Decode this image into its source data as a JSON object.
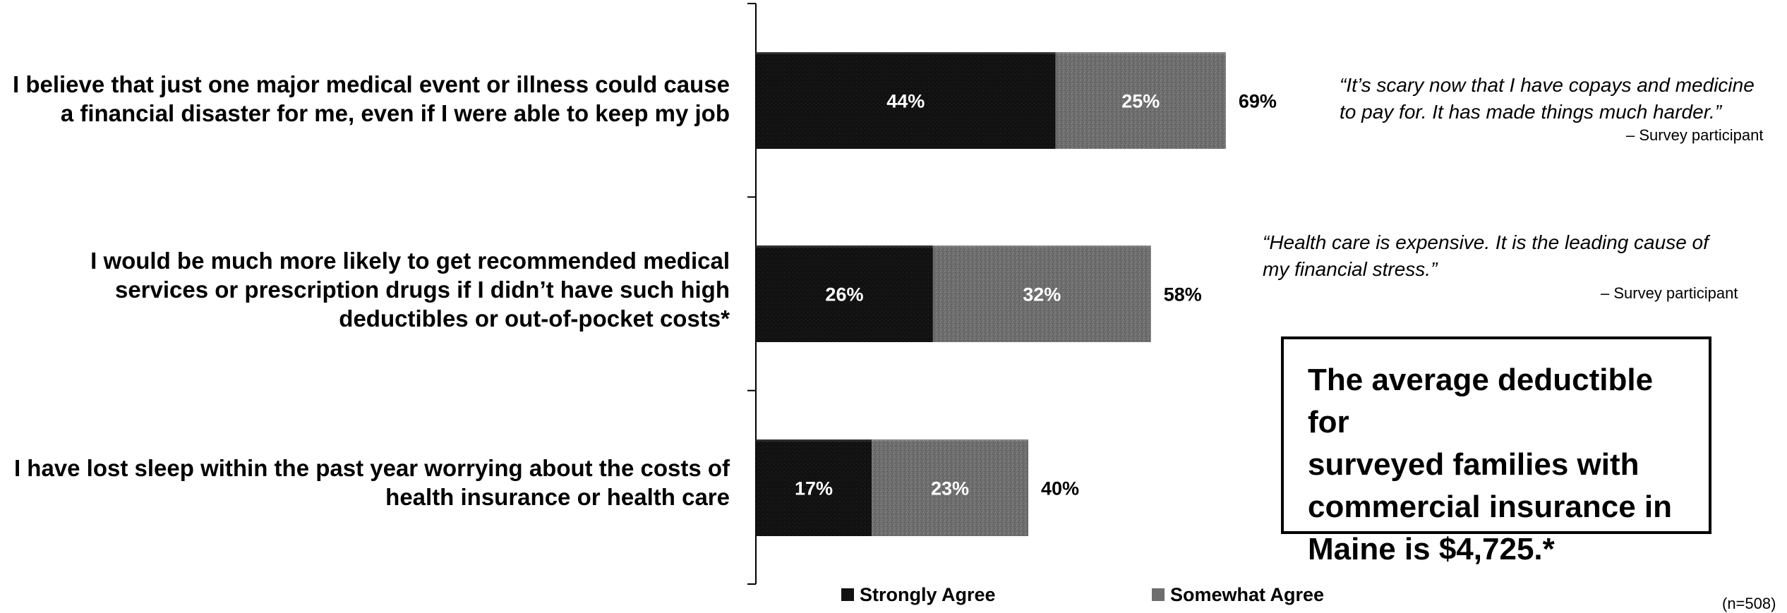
{
  "chart_data": {
    "type": "bar",
    "orientation": "horizontal",
    "stacked": true,
    "categories": [
      "I believe that just one major medical event or illness could cause a financial disaster for me, even if I were able to keep my job",
      "I would be much more likely to get recommended medical services or prescription drugs if I didn't have such high deductibles or out-of-pocket costs*",
      "I have lost sleep within the past year worrying about the costs of health insurance or health care"
    ],
    "category_lines": [
      [
        "I believe that just one major medical event or illness could cause",
        "a financial disaster for me, even if I were able to keep my job"
      ],
      [
        "I would be much more likely to get recommended medical",
        "services or prescription drugs if I didn’t have such high",
        "deductibles or out-of-pocket costs*"
      ],
      [
        "I have lost sleep within the past year worrying about the costs of",
        "health insurance or health care"
      ]
    ],
    "series": [
      {
        "name": "Strongly Agree",
        "values": [
          44,
          26,
          17
        ],
        "labels": [
          "44%",
          "26%",
          "17%"
        ],
        "color": "#111111"
      },
      {
        "name": "Somewhat Agree",
        "values": [
          25,
          32,
          23
        ],
        "labels": [
          "25%",
          "32%",
          "23%"
        ],
        "color": "#6e6e6e"
      }
    ],
    "totals": [
      "69%",
      "58%",
      "40%"
    ],
    "xlim": [
      0,
      100
    ],
    "grid": false,
    "legend_position": "bottom"
  },
  "quotes": [
    {
      "lines": [
        "“It’s scary now that I have copays and medicine",
        "to pay for.  It has made things much harder.”"
      ],
      "attribution": "– Survey participant"
    },
    {
      "lines": [
        "“Health care is expensive.  It is the leading cause of",
        "my financial stress.”"
      ],
      "attribution": "– Survey participant"
    }
  ],
  "callout": {
    "lines": [
      "The average deductible for",
      "surveyed families with",
      "commercial insurance in",
      "Maine is $4,725.*"
    ]
  },
  "footnote": "(n=508)"
}
